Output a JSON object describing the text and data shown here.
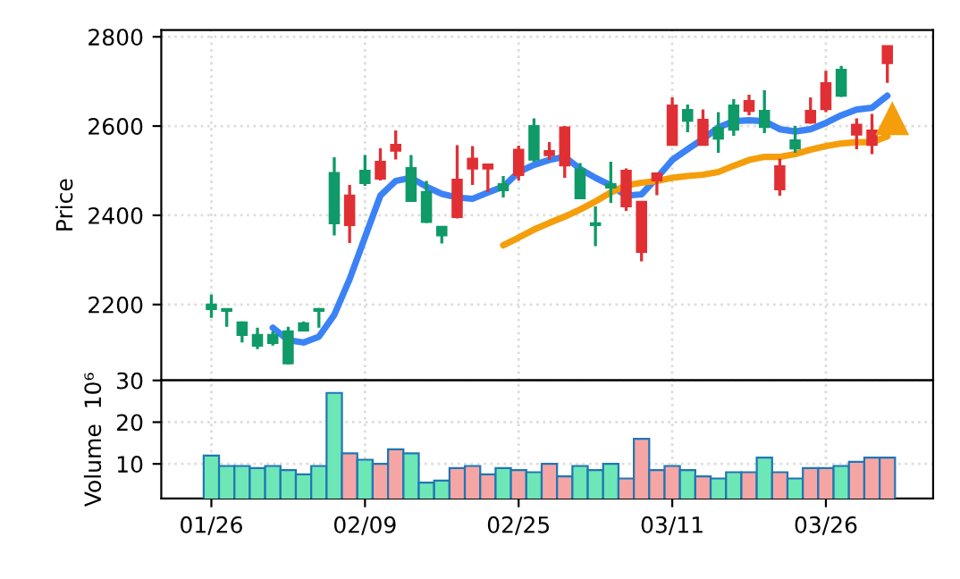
{
  "chart_data": [
    {
      "type": "candlestick",
      "ylabel": "Price",
      "ylim": [
        2030,
        2815
      ],
      "yticks": [
        2200,
        2400,
        2600,
        2800
      ],
      "grid": true,
      "tick_labels": "y",
      "categories": [
        null,
        null,
        null,
        null,
        null,
        null,
        null,
        null,
        null,
        null,
        null,
        null,
        null,
        null,
        null,
        null,
        null,
        null,
        null,
        null,
        null,
        null,
        null,
        null,
        null,
        null,
        null,
        null,
        null,
        null,
        null,
        null,
        null,
        null,
        null,
        null,
        null,
        null,
        null,
        null,
        null,
        null,
        null,
        null,
        null
      ],
      "ohlc": [
        [
          2190,
          2222,
          2170,
          2200
        ],
        [
          2186,
          2190,
          2150,
          2190
        ],
        [
          2132,
          2162,
          2115,
          2160
        ],
        [
          2108,
          2148,
          2100,
          2132
        ],
        [
          2114,
          2140,
          2108,
          2132
        ],
        [
          2068,
          2150,
          2066,
          2140
        ],
        [
          2142,
          2162,
          2140,
          2158
        ],
        [
          2186,
          2192,
          2148,
          2190
        ],
        [
          2382,
          2530,
          2355,
          2495
        ],
        [
          2444,
          2468,
          2338,
          2378
        ],
        [
          2472,
          2535,
          2466,
          2500
        ],
        [
          2520,
          2550,
          2478,
          2482
        ],
        [
          2558,
          2590,
          2525,
          2545
        ],
        [
          2432,
          2535,
          2430,
          2506
        ],
        [
          2385,
          2477,
          2383,
          2452
        ],
        [
          2355,
          2376,
          2337,
          2374
        ],
        [
          2480,
          2557,
          2393,
          2396
        ],
        [
          2527,
          2555,
          2468,
          2505
        ],
        [
          2514,
          2516,
          2452,
          2505
        ],
        [
          2456,
          2488,
          2440,
          2470
        ],
        [
          2547,
          2556,
          2478,
          2490
        ],
        [
          2525,
          2617,
          2520,
          2600
        ],
        [
          2544,
          2564,
          2524,
          2535
        ],
        [
          2597,
          2600,
          2484,
          2512
        ],
        [
          2438,
          2517,
          2436,
          2503
        ],
        [
          2378,
          2420,
          2331,
          2382
        ],
        [
          2462,
          2520,
          2428,
          2470
        ],
        [
          2500,
          2505,
          2410,
          2420
        ],
        [
          2430,
          2432,
          2297,
          2318
        ],
        [
          2494,
          2496,
          2445,
          2478
        ],
        [
          2646,
          2664,
          2556,
          2558
        ],
        [
          2612,
          2648,
          2586,
          2636
        ],
        [
          2614,
          2637,
          2556,
          2558
        ],
        [
          2572,
          2631,
          2540,
          2596
        ],
        [
          2592,
          2660,
          2578,
          2646
        ],
        [
          2656,
          2670,
          2624,
          2634
        ],
        [
          2598,
          2680,
          2584,
          2634
        ],
        [
          2510,
          2527,
          2444,
          2458
        ],
        [
          2550,
          2600,
          2540,
          2568
        ],
        [
          2634,
          2664,
          2605,
          2608
        ],
        [
          2696,
          2724,
          2631,
          2638
        ],
        [
          2668,
          2735,
          2665,
          2726
        ],
        [
          2603,
          2617,
          2548,
          2581
        ],
        [
          2590,
          2627,
          2537,
          2558
        ],
        [
          2779,
          2780,
          2697,
          2741
        ]
      ],
      "colors": [
        "#0f9a68",
        "#0f9a68",
        "#0f9a68",
        "#0f9a68",
        "#0f9a68",
        "#0f9a68",
        "#0f9a68",
        "#0f9a68",
        "#0f9a68",
        "#e03034",
        "#0f9a68",
        "#e03034",
        "#e03034",
        "#0f9a68",
        "#0f9a68",
        "#0f9a68",
        "#e03034",
        "#e03034",
        "#e03034",
        "#0f9a68",
        "#e03034",
        "#0f9a68",
        "#e03034",
        "#e03034",
        "#0f9a68",
        "#0f9a68",
        "#0f9a68",
        "#e03034",
        "#e03034",
        "#e03034",
        "#e03034",
        "#0f9a68",
        "#e03034",
        "#0f9a68",
        "#0f9a68",
        "#e03034",
        "#0f9a68",
        "#e03034",
        "#0f9a68",
        "#e03034",
        "#e03034",
        "#0f9a68",
        "#e03034",
        "#e03034",
        "#e03034"
      ],
      "series": [
        {
          "type": "line",
          "color": "#3b82f6",
          "values": [
            null,
            null,
            null,
            null,
            2148,
            2120,
            2115,
            2128,
            2177,
            2257,
            2351,
            2444,
            2477,
            2484,
            2464,
            2448,
            2440,
            2437,
            2451,
            2464,
            2497,
            2513,
            2524,
            2531,
            2504,
            2484,
            2467,
            2444,
            2447,
            2484,
            2524,
            2548,
            2571,
            2597,
            2611,
            2613,
            2611,
            2593,
            2588,
            2593,
            2607,
            2624,
            2637,
            2641,
            2668
          ]
        },
        {
          "type": "line",
          "color": "#f59e0b",
          "values": [
            null,
            null,
            null,
            null,
            null,
            null,
            null,
            null,
            null,
            null,
            null,
            null,
            null,
            null,
            null,
            null,
            null,
            null,
            null,
            2333,
            2350,
            2368,
            2383,
            2397,
            2413,
            2431,
            2451,
            2467,
            2473,
            2477,
            2484,
            2488,
            2491,
            2497,
            2511,
            2524,
            2531,
            2531,
            2537,
            2547,
            2555,
            2561,
            2564,
            2564,
            2577
          ]
        }
      ]
    },
    {
      "type": "bar",
      "ylabel": "Volume  10⁶",
      "ylim": [
        1.7,
        30
      ],
      "yticks": [
        10,
        20,
        30
      ],
      "grid": true,
      "categories": [
        "01/26",
        null,
        null,
        null,
        null,
        null,
        null,
        null,
        null,
        null,
        "02/09",
        null,
        null,
        null,
        null,
        null,
        null,
        null,
        null,
        null,
        "02/25",
        null,
        null,
        null,
        null,
        null,
        null,
        null,
        null,
        null,
        "03/11",
        null,
        null,
        null,
        null,
        null,
        null,
        null,
        null,
        null,
        "03/26",
        null,
        null,
        null,
        null
      ],
      "values": [
        12,
        9.5,
        9.5,
        9,
        9.5,
        8.5,
        7.5,
        9.5,
        27,
        12.5,
        11,
        10,
        13.5,
        12.5,
        5.5,
        6,
        9,
        9.5,
        7.5,
        9,
        8.5,
        8,
        10,
        7,
        9.5,
        8.5,
        10,
        6.5,
        16,
        8.5,
        9.5,
        8.5,
        7,
        6.5,
        8,
        8,
        11.5,
        8,
        6.5,
        9,
        9,
        9.5,
        10.5,
        11.5,
        11.5
      ],
      "colors": [
        "#6ee7b7",
        "#6ee7b7",
        "#6ee7b7",
        "#6ee7b7",
        "#6ee7b7",
        "#6ee7b7",
        "#6ee7b7",
        "#6ee7b7",
        "#6ee7b7",
        "#f6a5a5",
        "#6ee7b7",
        "#f6a5a5",
        "#f6a5a5",
        "#6ee7b7",
        "#6ee7b7",
        "#6ee7b7",
        "#f6a5a5",
        "#f6a5a5",
        "#f6a5a5",
        "#6ee7b7",
        "#f6a5a5",
        "#6ee7b7",
        "#f6a5a5",
        "#f6a5a5",
        "#6ee7b7",
        "#6ee7b7",
        "#6ee7b7",
        "#f6a5a5",
        "#f6a5a5",
        "#f6a5a5",
        "#f6a5a5",
        "#6ee7b7",
        "#f6a5a5",
        "#6ee7b7",
        "#6ee7b7",
        "#f6a5a5",
        "#6ee7b7",
        "#f6a5a5",
        "#6ee7b7",
        "#f6a5a5",
        "#f6a5a5",
        "#6ee7b7",
        "#f6a5a5",
        "#f6a5a5",
        "#f6a5a5"
      ]
    }
  ]
}
